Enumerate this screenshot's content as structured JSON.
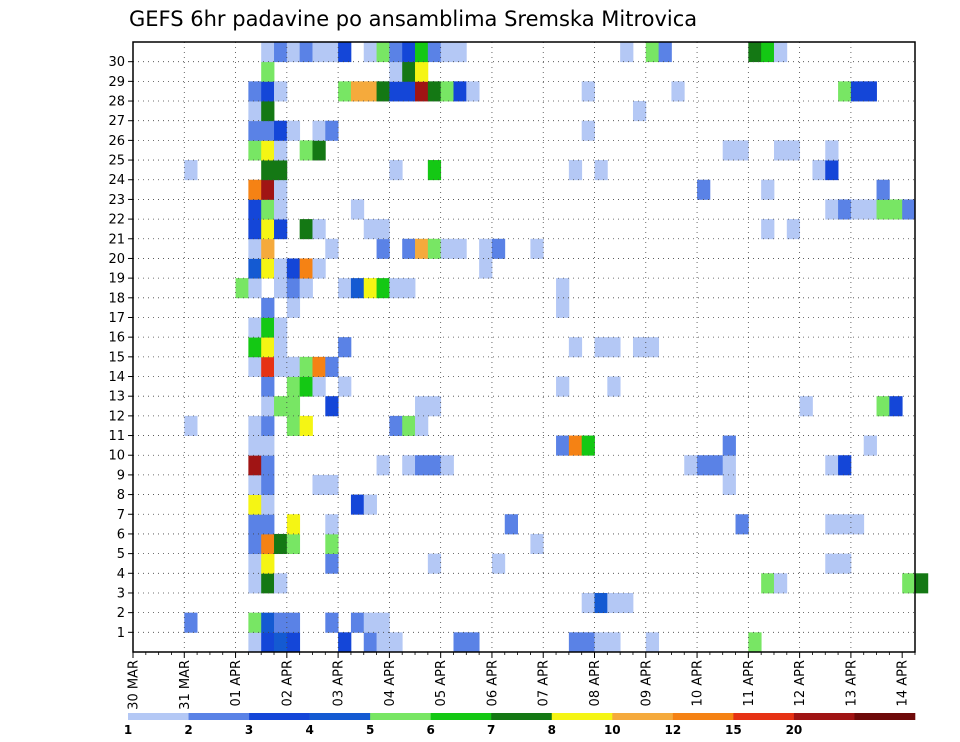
{
  "chart_data": {
    "type": "heatmap",
    "title": "GEFS 6hr padavine po ansamblima Sremska Mitrovica",
    "x_tick_labels": [
      "30 MAR",
      "31 MAR",
      "01 APR",
      "02 APR",
      "03 APR",
      "04 APR",
      "05 APR",
      "06 APR",
      "07 APR",
      "08 APR",
      "09 APR",
      "10 APR",
      "11 APR",
      "12 APR",
      "13 APR",
      "14 APR"
    ],
    "x_steps": 61,
    "steps_per_day": 4,
    "y_labels": [
      "1",
      "2",
      "3",
      "4",
      "5",
      "6",
      "7",
      "8",
      "9",
      "10",
      "11",
      "12",
      "13",
      "14",
      "15",
      "16",
      "17",
      "18",
      "19",
      "20",
      "21",
      "22",
      "23",
      "24",
      "25",
      "26",
      "27",
      "28",
      "29",
      "30"
    ],
    "y_rows": 31,
    "grid": true,
    "colorbar": {
      "labels": [
        "1",
        "2",
        "3",
        "4",
        "5",
        "6",
        "7",
        "8",
        "10",
        "12",
        "15",
        "20"
      ],
      "colors": [
        "#b4c8f5",
        "#5a82e6",
        "#1446d8",
        "#145ad2",
        "#78e664",
        "#14c814",
        "#147814",
        "#f5f514",
        "#f5aa3c",
        "#f58214",
        "#e63214",
        "#a01414",
        "#6e0a0a"
      ]
    },
    "cell_values": [
      [
        0,
        9,
        1
      ],
      [
        0,
        10,
        3
      ],
      [
        0,
        11,
        4
      ],
      [
        0,
        12,
        3
      ],
      [
        0,
        16,
        3
      ],
      [
        0,
        18,
        2
      ],
      [
        0,
        19,
        1
      ],
      [
        0,
        20,
        1
      ],
      [
        0,
        25,
        2
      ],
      [
        0,
        26,
        2
      ],
      [
        0,
        34,
        2
      ],
      [
        0,
        35,
        2
      ],
      [
        0,
        36,
        1
      ],
      [
        0,
        37,
        1
      ],
      [
        0,
        40,
        1
      ],
      [
        0,
        48,
        5
      ],
      [
        1,
        4,
        2
      ],
      [
        1,
        9,
        5
      ],
      [
        1,
        10,
        4
      ],
      [
        1,
        11,
        2
      ],
      [
        1,
        12,
        2
      ],
      [
        1,
        15,
        2
      ],
      [
        1,
        17,
        2
      ],
      [
        1,
        18,
        1
      ],
      [
        1,
        19,
        1
      ],
      [
        2,
        35,
        1
      ],
      [
        2,
        36,
        4
      ],
      [
        2,
        37,
        1
      ],
      [
        2,
        38,
        1
      ],
      [
        3,
        9,
        1
      ],
      [
        3,
        10,
        7
      ],
      [
        3,
        11,
        1
      ],
      [
        3,
        49,
        5
      ],
      [
        3,
        50,
        1
      ],
      [
        3,
        60,
        5
      ],
      [
        3,
        61,
        7
      ],
      [
        4,
        9,
        1
      ],
      [
        4,
        10,
        8
      ],
      [
        4,
        15,
        2
      ],
      [
        4,
        23,
        1
      ],
      [
        4,
        28,
        1
      ],
      [
        4,
        54,
        1
      ],
      [
        4,
        55,
        1
      ],
      [
        5,
        9,
        2
      ],
      [
        5,
        10,
        10
      ],
      [
        5,
        11,
        7
      ],
      [
        5,
        12,
        5
      ],
      [
        5,
        15,
        5
      ],
      [
        5,
        31,
        1
      ],
      [
        6,
        9,
        2
      ],
      [
        6,
        10,
        2
      ],
      [
        6,
        12,
        8
      ],
      [
        6,
        15,
        1
      ],
      [
        6,
        29,
        2
      ],
      [
        6,
        47,
        2
      ],
      [
        6,
        54,
        1
      ],
      [
        6,
        55,
        1
      ],
      [
        6,
        56,
        1
      ],
      [
        7,
        9,
        8
      ],
      [
        7,
        10,
        1
      ],
      [
        7,
        17,
        3
      ],
      [
        7,
        18,
        1
      ],
      [
        8,
        9,
        1
      ],
      [
        8,
        10,
        2
      ],
      [
        8,
        14,
        1
      ],
      [
        8,
        15,
        1
      ],
      [
        8,
        46,
        1
      ],
      [
        9,
        9,
        12
      ],
      [
        9,
        10,
        2
      ],
      [
        9,
        19,
        1
      ],
      [
        9,
        21,
        1
      ],
      [
        9,
        22,
        2
      ],
      [
        9,
        23,
        2
      ],
      [
        9,
        24,
        1
      ],
      [
        9,
        43,
        1
      ],
      [
        9,
        44,
        2
      ],
      [
        9,
        45,
        2
      ],
      [
        9,
        46,
        1
      ],
      [
        9,
        54,
        1
      ],
      [
        9,
        55,
        3
      ],
      [
        10,
        9,
        1
      ],
      [
        10,
        10,
        1
      ],
      [
        10,
        33,
        2
      ],
      [
        10,
        34,
        10
      ],
      [
        10,
        35,
        6
      ],
      [
        10,
        46,
        2
      ],
      [
        10,
        57,
        1
      ],
      [
        11,
        4,
        1
      ],
      [
        11,
        9,
        1
      ],
      [
        11,
        10,
        2
      ],
      [
        11,
        12,
        5
      ],
      [
        11,
        13,
        8
      ],
      [
        11,
        20,
        2
      ],
      [
        11,
        21,
        5
      ],
      [
        11,
        22,
        1
      ],
      [
        12,
        10,
        1
      ],
      [
        12,
        11,
        5
      ],
      [
        12,
        12,
        5
      ],
      [
        12,
        15,
        3
      ],
      [
        12,
        22,
        1
      ],
      [
        12,
        23,
        1
      ],
      [
        12,
        52,
        1
      ],
      [
        12,
        58,
        5
      ],
      [
        12,
        59,
        3
      ],
      [
        13,
        10,
        2
      ],
      [
        13,
        12,
        5
      ],
      [
        13,
        13,
        6
      ],
      [
        13,
        14,
        1
      ],
      [
        13,
        16,
        1
      ],
      [
        13,
        33,
        1
      ],
      [
        13,
        37,
        1
      ],
      [
        14,
        9,
        1
      ],
      [
        14,
        10,
        11
      ],
      [
        14,
        11,
        1
      ],
      [
        14,
        12,
        1
      ],
      [
        14,
        13,
        5
      ],
      [
        14,
        14,
        10
      ],
      [
        14,
        15,
        2
      ],
      [
        15,
        9,
        6
      ],
      [
        15,
        10,
        8
      ],
      [
        15,
        11,
        1
      ],
      [
        15,
        16,
        2
      ],
      [
        15,
        34,
        1
      ],
      [
        15,
        36,
        1
      ],
      [
        15,
        37,
        1
      ],
      [
        15,
        39,
        1
      ],
      [
        15,
        40,
        1
      ],
      [
        16,
        9,
        1
      ],
      [
        16,
        10,
        6
      ],
      [
        16,
        11,
        1
      ],
      [
        17,
        10,
        2
      ],
      [
        17,
        12,
        1
      ],
      [
        17,
        33,
        1
      ],
      [
        18,
        8,
        5
      ],
      [
        18,
        9,
        1
      ],
      [
        18,
        11,
        1
      ],
      [
        18,
        12,
        2
      ],
      [
        18,
        13,
        1
      ],
      [
        18,
        16,
        1
      ],
      [
        18,
        17,
        4
      ],
      [
        18,
        18,
        8
      ],
      [
        18,
        19,
        6
      ],
      [
        18,
        20,
        1
      ],
      [
        18,
        21,
        1
      ],
      [
        18,
        33,
        1
      ],
      [
        19,
        9,
        4
      ],
      [
        19,
        10,
        8
      ],
      [
        19,
        11,
        1
      ],
      [
        19,
        12,
        3
      ],
      [
        19,
        13,
        10
      ],
      [
        19,
        14,
        1
      ],
      [
        19,
        27,
        1
      ],
      [
        20,
        9,
        1
      ],
      [
        20,
        10,
        9
      ],
      [
        20,
        15,
        1
      ],
      [
        20,
        19,
        2
      ],
      [
        20,
        21,
        2
      ],
      [
        20,
        22,
        9
      ],
      [
        20,
        23,
        5
      ],
      [
        20,
        24,
        1
      ],
      [
        20,
        25,
        1
      ],
      [
        20,
        27,
        1
      ],
      [
        20,
        28,
        2
      ],
      [
        20,
        31,
        1
      ],
      [
        21,
        9,
        3
      ],
      [
        21,
        10,
        8
      ],
      [
        21,
        11,
        3
      ],
      [
        21,
        13,
        7
      ],
      [
        21,
        14,
        1
      ],
      [
        21,
        18,
        1
      ],
      [
        21,
        19,
        1
      ],
      [
        21,
        49,
        1
      ],
      [
        21,
        51,
        1
      ],
      [
        22,
        9,
        3
      ],
      [
        22,
        10,
        5
      ],
      [
        22,
        11,
        1
      ],
      [
        22,
        17,
        1
      ],
      [
        22,
        54,
        1
      ],
      [
        22,
        55,
        2
      ],
      [
        22,
        56,
        1
      ],
      [
        22,
        57,
        1
      ],
      [
        22,
        58,
        5
      ],
      [
        22,
        59,
        5
      ],
      [
        22,
        60,
        2
      ],
      [
        23,
        9,
        10
      ],
      [
        23,
        10,
        12
      ],
      [
        23,
        11,
        1
      ],
      [
        23,
        44,
        2
      ],
      [
        23,
        49,
        1
      ],
      [
        23,
        58,
        2
      ],
      [
        24,
        4,
        1
      ],
      [
        24,
        10,
        7
      ],
      [
        24,
        11,
        7
      ],
      [
        24,
        20,
        1
      ],
      [
        24,
        23,
        6
      ],
      [
        24,
        34,
        1
      ],
      [
        24,
        36,
        1
      ],
      [
        24,
        53,
        1
      ],
      [
        24,
        54,
        3
      ],
      [
        25,
        9,
        5
      ],
      [
        25,
        10,
        8
      ],
      [
        25,
        11,
        1
      ],
      [
        25,
        13,
        5
      ],
      [
        25,
        14,
        7
      ],
      [
        25,
        46,
        1
      ],
      [
        25,
        47,
        1
      ],
      [
        25,
        50,
        1
      ],
      [
        25,
        51,
        1
      ],
      [
        25,
        54,
        1
      ],
      [
        26,
        9,
        2
      ],
      [
        26,
        10,
        2
      ],
      [
        26,
        11,
        3
      ],
      [
        26,
        12,
        1
      ],
      [
        26,
        14,
        1
      ],
      [
        26,
        15,
        2
      ],
      [
        26,
        35,
        1
      ],
      [
        27,
        9,
        1
      ],
      [
        27,
        10,
        7
      ],
      [
        27,
        39,
        1
      ],
      [
        28,
        9,
        2
      ],
      [
        28,
        10,
        3
      ],
      [
        28,
        11,
        1
      ],
      [
        28,
        16,
        5
      ],
      [
        28,
        17,
        9
      ],
      [
        28,
        18,
        9
      ],
      [
        28,
        19,
        7
      ],
      [
        28,
        20,
        3
      ],
      [
        28,
        21,
        3
      ],
      [
        28,
        22,
        12
      ],
      [
        28,
        23,
        7
      ],
      [
        28,
        24,
        5
      ],
      [
        28,
        25,
        3
      ],
      [
        28,
        26,
        1
      ],
      [
        28,
        35,
        1
      ],
      [
        28,
        42,
        1
      ],
      [
        28,
        55,
        5
      ],
      [
        28,
        56,
        3
      ],
      [
        28,
        57,
        3
      ],
      [
        29,
        10,
        5
      ],
      [
        29,
        20,
        1
      ],
      [
        29,
        21,
        7
      ],
      [
        29,
        22,
        8
      ],
      [
        30,
        10,
        1
      ],
      [
        30,
        11,
        2
      ],
      [
        30,
        12,
        1
      ],
      [
        30,
        13,
        2
      ],
      [
        30,
        14,
        1
      ],
      [
        30,
        15,
        1
      ],
      [
        30,
        16,
        3
      ],
      [
        30,
        18,
        1
      ],
      [
        30,
        19,
        5
      ],
      [
        30,
        20,
        2
      ],
      [
        30,
        21,
        3
      ],
      [
        30,
        22,
        6
      ],
      [
        30,
        23,
        2
      ],
      [
        30,
        24,
        1
      ],
      [
        30,
        25,
        1
      ],
      [
        30,
        38,
        1
      ],
      [
        30,
        40,
        5
      ],
      [
        30,
        41,
        2
      ],
      [
        30,
        48,
        7
      ],
      [
        30,
        49,
        6
      ],
      [
        30,
        50,
        1
      ]
    ]
  }
}
